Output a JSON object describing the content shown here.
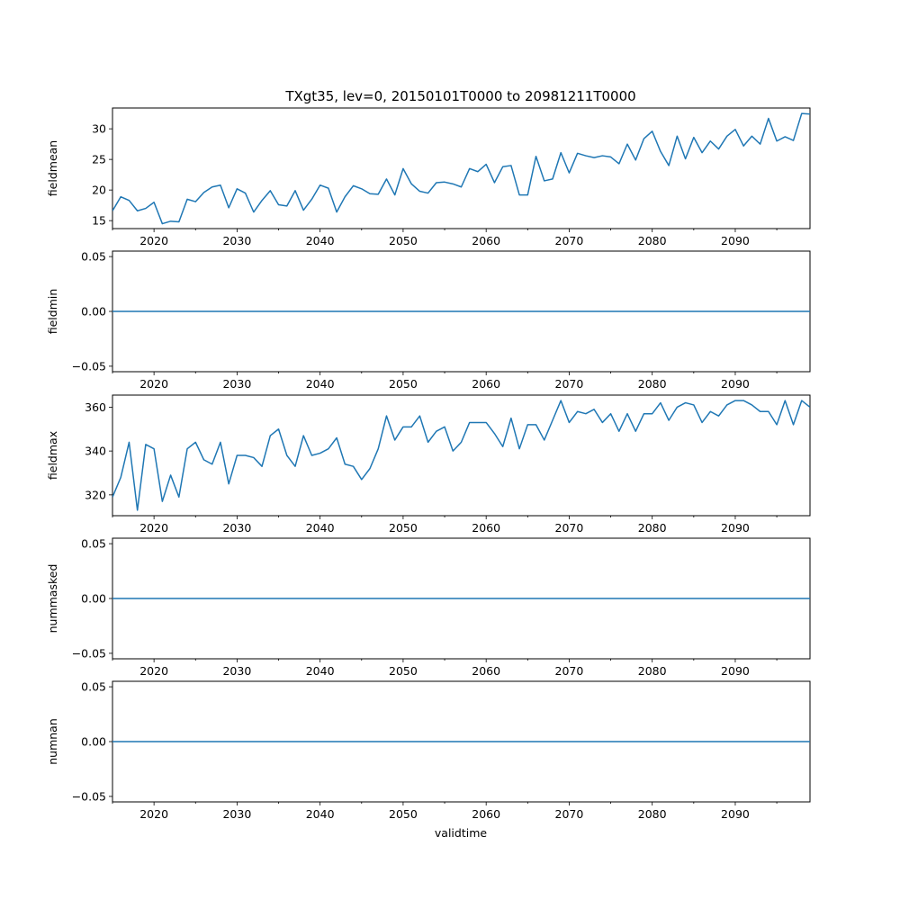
{
  "figure_title": "TXgt35, lev=0, 20150101T0000 to 20981211T0000",
  "colors": {
    "line": "#1f77b4",
    "axes": "#000000",
    "background": "#ffffff"
  },
  "chart_data": {
    "type": "line",
    "title": "TXgt35, lev=0, 20150101T0000 to 20981211T0000",
    "xlabel": "validtime",
    "x": [
      2015,
      2016,
      2017,
      2018,
      2019,
      2020,
      2021,
      2022,
      2023,
      2024,
      2025,
      2026,
      2027,
      2028,
      2029,
      2030,
      2031,
      2032,
      2033,
      2034,
      2035,
      2036,
      2037,
      2038,
      2039,
      2040,
      2041,
      2042,
      2043,
      2044,
      2045,
      2046,
      2047,
      2048,
      2049,
      2050,
      2051,
      2052,
      2053,
      2054,
      2055,
      2056,
      2057,
      2058,
      2059,
      2060,
      2061,
      2062,
      2063,
      2064,
      2065,
      2066,
      2067,
      2068,
      2069,
      2070,
      2071,
      2072,
      2073,
      2074,
      2075,
      2076,
      2077,
      2078,
      2079,
      2080,
      2081,
      2082,
      2083,
      2084,
      2085,
      2086,
      2087,
      2088,
      2089,
      2090,
      2091,
      2092,
      2093,
      2094,
      2095,
      2096,
      2097,
      2098,
      2099
    ],
    "xlim": [
      2015,
      2099
    ],
    "xticks": [
      2020,
      2030,
      2040,
      2050,
      2060,
      2070,
      2080,
      2090
    ],
    "xtick_labels": [
      "2020",
      "2030",
      "2040",
      "2050",
      "2060",
      "2070",
      "2080",
      "2090"
    ],
    "panels": [
      {
        "name": "fieldmean",
        "ylabel": "fieldmean",
        "ylim": [
          13.7,
          33.4
        ],
        "yticks": [
          15,
          20,
          25,
          30
        ],
        "ytick_labels": [
          "15",
          "20",
          "25",
          "30"
        ],
        "values": [
          16.6,
          18.9,
          18.3,
          16.6,
          17.0,
          18.0,
          14.5,
          14.9,
          14.8,
          18.5,
          18.1,
          19.6,
          20.5,
          20.8,
          17.1,
          20.2,
          19.5,
          16.4,
          18.3,
          19.9,
          17.6,
          17.4,
          19.9,
          16.7,
          18.5,
          20.8,
          20.3,
          16.4,
          18.9,
          20.7,
          20.2,
          19.4,
          19.3,
          21.8,
          19.2,
          23.5,
          21.0,
          19.8,
          19.5,
          21.2,
          21.3,
          21.0,
          20.5,
          23.5,
          23.0,
          24.2,
          21.2,
          23.8,
          24.0,
          19.2,
          19.2,
          25.5,
          21.5,
          21.8,
          26.1,
          22.8,
          26.0,
          25.6,
          25.3,
          25.6,
          25.4,
          24.3,
          27.5,
          24.9,
          28.4,
          29.6,
          26.3,
          24.0,
          28.8,
          25.1,
          28.6,
          26.1,
          28.0,
          26.7,
          28.8,
          29.9,
          27.2,
          28.8,
          27.5,
          31.7,
          28.0,
          28.7,
          28.1,
          32.5,
          32.4
        ]
      },
      {
        "name": "fieldmin",
        "ylabel": "fieldmin",
        "ylim": [
          -0.055,
          0.055
        ],
        "yticks": [
          -0.05,
          0.0,
          0.05
        ],
        "ytick_labels": [
          "−0.05",
          "0.00",
          "0.05"
        ],
        "values": [
          0,
          0,
          0,
          0,
          0,
          0,
          0,
          0,
          0,
          0,
          0,
          0,
          0,
          0,
          0,
          0,
          0,
          0,
          0,
          0,
          0,
          0,
          0,
          0,
          0,
          0,
          0,
          0,
          0,
          0,
          0,
          0,
          0,
          0,
          0,
          0,
          0,
          0,
          0,
          0,
          0,
          0,
          0,
          0,
          0,
          0,
          0,
          0,
          0,
          0,
          0,
          0,
          0,
          0,
          0,
          0,
          0,
          0,
          0,
          0,
          0,
          0,
          0,
          0,
          0,
          0,
          0,
          0,
          0,
          0,
          0,
          0,
          0,
          0,
          0,
          0,
          0,
          0,
          0,
          0,
          0,
          0,
          0,
          0,
          0
        ]
      },
      {
        "name": "fieldmax",
        "ylabel": "fieldmax",
        "ylim": [
          310.5,
          365.5
        ],
        "yticks": [
          320,
          340,
          360
        ],
        "ytick_labels": [
          "320",
          "340",
          "360"
        ],
        "values": [
          319,
          328,
          344,
          313,
          343,
          341,
          317,
          329,
          319,
          341,
          344,
          336,
          334,
          344,
          325,
          338,
          338,
          337,
          333,
          347,
          350,
          338,
          333,
          347,
          338,
          339,
          341,
          346,
          334,
          333,
          327,
          332,
          341,
          356,
          345,
          351,
          351,
          356,
          344,
          349,
          351,
          340,
          344,
          353,
          353,
          353,
          348,
          342,
          355,
          341,
          352,
          352,
          345,
          354,
          363,
          353,
          358,
          357,
          359,
          353,
          357,
          349,
          357,
          349,
          357,
          357,
          362,
          354,
          360,
          362,
          361,
          353,
          358,
          356,
          361,
          363,
          363,
          361,
          358,
          358,
          352,
          363,
          352,
          363,
          360
        ]
      },
      {
        "name": "nummasked",
        "ylabel": "nummasked",
        "ylim": [
          -0.055,
          0.055
        ],
        "yticks": [
          -0.05,
          0.0,
          0.05
        ],
        "ytick_labels": [
          "−0.05",
          "0.00",
          "0.05"
        ],
        "values": [
          0,
          0,
          0,
          0,
          0,
          0,
          0,
          0,
          0,
          0,
          0,
          0,
          0,
          0,
          0,
          0,
          0,
          0,
          0,
          0,
          0,
          0,
          0,
          0,
          0,
          0,
          0,
          0,
          0,
          0,
          0,
          0,
          0,
          0,
          0,
          0,
          0,
          0,
          0,
          0,
          0,
          0,
          0,
          0,
          0,
          0,
          0,
          0,
          0,
          0,
          0,
          0,
          0,
          0,
          0,
          0,
          0,
          0,
          0,
          0,
          0,
          0,
          0,
          0,
          0,
          0,
          0,
          0,
          0,
          0,
          0,
          0,
          0,
          0,
          0,
          0,
          0,
          0,
          0,
          0,
          0,
          0,
          0,
          0,
          0
        ]
      },
      {
        "name": "numnan",
        "ylabel": "numnan",
        "ylim": [
          -0.055,
          0.055
        ],
        "yticks": [
          -0.05,
          0.0,
          0.05
        ],
        "ytick_labels": [
          "−0.05",
          "0.00",
          "0.05"
        ],
        "values": [
          0,
          0,
          0,
          0,
          0,
          0,
          0,
          0,
          0,
          0,
          0,
          0,
          0,
          0,
          0,
          0,
          0,
          0,
          0,
          0,
          0,
          0,
          0,
          0,
          0,
          0,
          0,
          0,
          0,
          0,
          0,
          0,
          0,
          0,
          0,
          0,
          0,
          0,
          0,
          0,
          0,
          0,
          0,
          0,
          0,
          0,
          0,
          0,
          0,
          0,
          0,
          0,
          0,
          0,
          0,
          0,
          0,
          0,
          0,
          0,
          0,
          0,
          0,
          0,
          0,
          0,
          0,
          0,
          0,
          0,
          0,
          0,
          0,
          0,
          0,
          0,
          0,
          0,
          0,
          0,
          0,
          0,
          0,
          0,
          0
        ]
      }
    ]
  }
}
